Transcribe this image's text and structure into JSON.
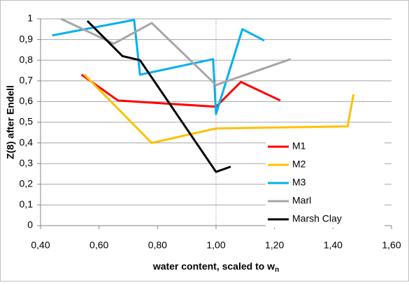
{
  "chart_data": {
    "type": "line",
    "x_label": {
      "text": "water content, scaled to w",
      "subscript": "n"
    },
    "y_label": "Z(8) after Endell",
    "xlim": [
      0.4,
      1.6
    ],
    "xticks": [
      {
        "value": 0.4,
        "label": "0,40"
      },
      {
        "value": 0.6,
        "label": "0,60"
      },
      {
        "value": 0.8,
        "label": "0,80"
      },
      {
        "value": 1.0,
        "label": "1,00"
      },
      {
        "value": 1.2,
        "label": "1,20"
      },
      {
        "value": 1.4,
        "label": "1,40"
      },
      {
        "value": 1.6,
        "label": "1,60"
      }
    ],
    "ylim": [
      0,
      1
    ],
    "yticks": [
      0,
      {
        "value": 0.1,
        "label": "0,1"
      },
      {
        "value": 0.2,
        "label": "0,2"
      },
      {
        "value": 0.3,
        "label": "0,3"
      },
      {
        "value": 0.4,
        "label": "0,4"
      },
      {
        "value": 0.5,
        "label": "0,5"
      },
      {
        "value": 0.6,
        "label": "0,6"
      },
      {
        "value": 0.7,
        "label": "0,7"
      },
      {
        "value": 0.8,
        "label": "0,8"
      },
      {
        "value": 0.9,
        "label": "0,9"
      },
      1
    ],
    "grid": true,
    "reference_x": 1.0,
    "legend": "lower right",
    "series": [
      {
        "name": "M1",
        "color": "#ff0000",
        "x": [
          0.54,
          0.665,
          1.0,
          1.085,
          1.22
        ],
        "values": [
          0.73,
          0.605,
          0.575,
          0.695,
          0.605
        ]
      },
      {
        "name": "M2",
        "color": "#ffc000",
        "x": [
          0.55,
          0.78,
          1.0,
          1.45,
          1.47
        ],
        "values": [
          0.73,
          0.4,
          0.47,
          0.48,
          0.635
        ]
      },
      {
        "name": "M3",
        "color": "#00b0f0",
        "x": [
          0.44,
          0.72,
          0.74,
          0.99,
          1.0,
          1.09,
          1.165
        ],
        "values": [
          0.92,
          0.995,
          0.73,
          0.805,
          0.54,
          0.95,
          0.895
        ]
      },
      {
        "name": "Marl",
        "color": "#a6a6a6",
        "x": [
          0.47,
          0.65,
          0.78,
          1.0,
          1.255
        ],
        "values": [
          1.0,
          0.88,
          0.98,
          0.68,
          0.805
        ]
      },
      {
        "name": "Marsh Clay",
        "color": "#000000",
        "x": [
          0.56,
          0.68,
          0.74,
          1.0,
          1.05
        ],
        "values": [
          0.99,
          0.82,
          0.8,
          0.26,
          0.285
        ]
      }
    ]
  }
}
